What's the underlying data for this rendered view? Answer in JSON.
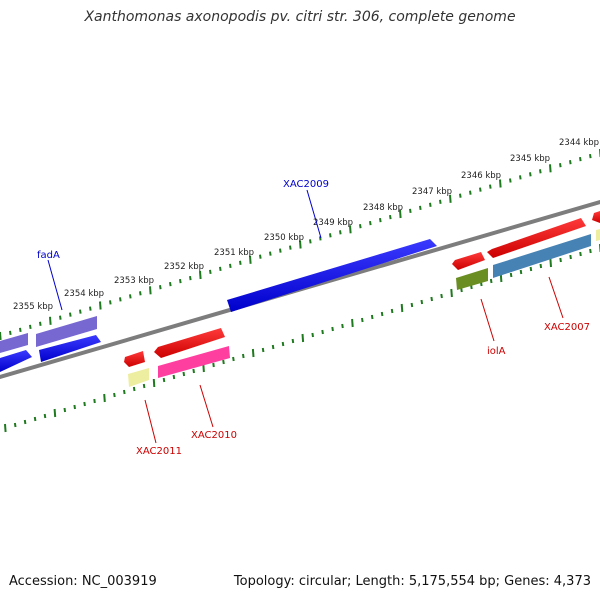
{
  "title": "Xanthomonas axonopodis pv. citri str. 306, complete genome",
  "footer": {
    "accession": "Accession: NC_003919",
    "summary": "Topology: circular; Length: 5,175,554 bp; Genes: 4,373"
  },
  "colors": {
    "backbone": "#7d7d7d",
    "ticks": "#1f7a1f",
    "label_text": "#222222",
    "blue_label": "#0000cc",
    "red_label": "#cc0000"
  },
  "kbp_labels": [
    "2344 kbp",
    "2345 kbp",
    "2346 kbp",
    "2347 kbp",
    "2348 kbp",
    "2349 kbp",
    "2350 kbp",
    "2351 kbp",
    "2352 kbp",
    "2353 kbp",
    "2354 kbp",
    "2355 kbp"
  ],
  "gene_labels": [
    {
      "id": "fadA",
      "color": "blue"
    },
    {
      "id": "XAC2009",
      "color": "blue"
    },
    {
      "id": "XAC2011",
      "color": "red"
    },
    {
      "id": "XAC2010",
      "color": "red"
    },
    {
      "id": "iolA",
      "color": "red"
    },
    {
      "id": "XAC2007",
      "color": "red"
    }
  ]
}
